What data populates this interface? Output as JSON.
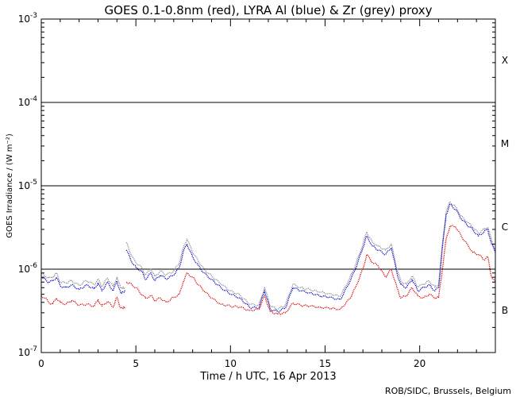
{
  "chart_data": {
    "type": "line",
    "title": "GOES 0.1-0.8nm (red), LYRA Al (blue) & Zr (grey) proxy",
    "xlabel": "Time / h UTC, 16 Apr 2013",
    "ylabel": "GOES Irradiance / (W m⁻²)",
    "xlim": [
      0,
      24
    ],
    "ylim": [
      1e-07,
      0.001
    ],
    "yscale": "log",
    "x_ticks": [
      0,
      5,
      10,
      15,
      20
    ],
    "y_ticks": [
      {
        "exp": -7,
        "label_base": "10",
        "label_exp": "-7"
      },
      {
        "exp": -6,
        "label_base": "10",
        "label_exp": "-6"
      },
      {
        "exp": -5,
        "label_base": "10",
        "label_exp": "-5"
      },
      {
        "exp": -4,
        "label_base": "10",
        "label_exp": "-4"
      },
      {
        "exp": -3,
        "label_base": "10",
        "label_exp": "-3"
      }
    ],
    "flare_class_lines": [
      1e-06,
      1e-05,
      0.0001
    ],
    "flare_classes": [
      {
        "label": "B",
        "y": 3.2e-07
      },
      {
        "label": "C",
        "y": 3.2e-06
      },
      {
        "label": "M",
        "y": 3.2e-05
      },
      {
        "label": "X",
        "y": 0.00032
      }
    ],
    "colors": {
      "goes": "#dd0000",
      "lyra_al": "#0000cc",
      "lyra_zr": "#888888",
      "axis": "#000000"
    },
    "series": [
      {
        "name": "GOES 0.1-0.8nm",
        "color": "#dd0000",
        "segments": [
          [
            [
              0.0,
              4.8e-07
            ],
            [
              0.2,
              4.5e-07
            ],
            [
              0.4,
              4e-07
            ],
            [
              0.6,
              3.8e-07
            ],
            [
              0.8,
              4.5e-07
            ],
            [
              1.0,
              4e-07
            ],
            [
              1.3,
              3.8e-07
            ],
            [
              1.6,
              4.2e-07
            ],
            [
              2.0,
              3.7e-07
            ],
            [
              2.4,
              3.8e-07
            ],
            [
              2.8,
              3.6e-07
            ],
            [
              3.0,
              4.3e-07
            ],
            [
              3.2,
              3.6e-07
            ],
            [
              3.5,
              4.1e-07
            ],
            [
              3.8,
              3.5e-07
            ],
            [
              4.0,
              4.6e-07
            ],
            [
              4.2,
              3.4e-07
            ],
            [
              4.45,
              3.5e-07
            ]
          ],
          [
            [
              4.5,
              7e-07
            ],
            [
              4.8,
              6.5e-07
            ],
            [
              5.0,
              6e-07
            ],
            [
              5.3,
              5e-07
            ],
            [
              5.5,
              4.5e-07
            ],
            [
              5.8,
              4.8e-07
            ],
            [
              6.0,
              4.2e-07
            ],
            [
              6.3,
              4.5e-07
            ],
            [
              6.6,
              4e-07
            ],
            [
              7.0,
              4.6e-07
            ],
            [
              7.3,
              5e-07
            ],
            [
              7.5,
              7e-07
            ],
            [
              7.7,
              9e-07
            ],
            [
              8.0,
              8e-07
            ],
            [
              8.3,
              6.5e-07
            ],
            [
              8.6,
              5.5e-07
            ],
            [
              9.0,
              4.5e-07
            ],
            [
              9.5,
              3.8e-07
            ],
            [
              10.0,
              3.6e-07
            ],
            [
              10.5,
              3.5e-07
            ],
            [
              11.0,
              3.2e-07
            ],
            [
              11.5,
              3.3e-07
            ],
            [
              11.8,
              4.8e-07
            ],
            [
              12.1,
              3.1e-07
            ],
            [
              12.5,
              2.9e-07
            ],
            [
              12.9,
              3e-07
            ],
            [
              13.3,
              3.9e-07
            ],
            [
              13.7,
              3.7e-07
            ],
            [
              14.2,
              3.6e-07
            ],
            [
              14.7,
              3.5e-07
            ],
            [
              15.2,
              3.4e-07
            ],
            [
              15.8,
              3.3e-07
            ],
            [
              16.3,
              4.4e-07
            ],
            [
              16.6,
              6e-07
            ],
            [
              17.0,
              1e-06
            ],
            [
              17.2,
              1.5e-06
            ],
            [
              17.5,
              1.2e-06
            ],
            [
              17.8,
              1.1e-06
            ],
            [
              18.2,
              8e-07
            ],
            [
              18.5,
              1e-06
            ],
            [
              18.8,
              6e-07
            ],
            [
              19.0,
              4.5e-07
            ],
            [
              19.3,
              4.8e-07
            ],
            [
              19.6,
              6e-07
            ],
            [
              19.9,
              4.8e-07
            ],
            [
              20.2,
              4.5e-07
            ],
            [
              20.5,
              5e-07
            ],
            [
              20.8,
              4.5e-07
            ],
            [
              21.0,
              4.6e-07
            ],
            [
              21.2,
              1e-06
            ],
            [
              21.4,
              2.3e-06
            ],
            [
              21.6,
              3.3e-06
            ],
            [
              21.9,
              3.2e-06
            ],
            [
              22.2,
              2.5e-06
            ],
            [
              22.5,
              2e-06
            ],
            [
              22.8,
              1.6e-06
            ],
            [
              23.1,
              1.5e-06
            ],
            [
              23.4,
              1.3e-06
            ],
            [
              23.6,
              1.4e-06
            ],
            [
              23.8,
              8e-07
            ],
            [
              24.0,
              7e-07
            ]
          ]
        ]
      },
      {
        "name": "LYRA Al proxy",
        "color": "#0000cc",
        "segments": [
          [
            [
              0.0,
              8e-07
            ],
            [
              0.2,
              7.5e-07
            ],
            [
              0.4,
              7e-07
            ],
            [
              0.6,
              7.2e-07
            ],
            [
              0.8,
              8e-07
            ],
            [
              1.0,
              6.3e-07
            ],
            [
              1.3,
              6e-07
            ],
            [
              1.6,
              6.5e-07
            ],
            [
              2.0,
              5.7e-07
            ],
            [
              2.4,
              6.5e-07
            ],
            [
              2.8,
              5.8e-07
            ],
            [
              3.0,
              6.8e-07
            ],
            [
              3.2,
              5.5e-07
            ],
            [
              3.5,
              7e-07
            ],
            [
              3.8,
              5.5e-07
            ],
            [
              4.0,
              7.2e-07
            ],
            [
              4.2,
              5.2e-07
            ],
            [
              4.45,
              5.4e-07
            ]
          ],
          [
            [
              4.5,
              1.7e-06
            ],
            [
              4.8,
              1.2e-06
            ],
            [
              5.0,
              1.05e-06
            ],
            [
              5.3,
              9.5e-07
            ],
            [
              5.5,
              7.5e-07
            ],
            [
              5.8,
              9e-07
            ],
            [
              6.0,
              7.3e-07
            ],
            [
              6.3,
              8.5e-07
            ],
            [
              6.6,
              7.6e-07
            ],
            [
              7.0,
              8.5e-07
            ],
            [
              7.3,
              1.05e-06
            ],
            [
              7.5,
              1.6e-06
            ],
            [
              7.7,
              2e-06
            ],
            [
              8.0,
              1.4e-06
            ],
            [
              8.3,
              1.1e-06
            ],
            [
              8.6,
              9e-07
            ],
            [
              9.0,
              7.5e-07
            ],
            [
              9.5,
              6e-07
            ],
            [
              10.0,
              5e-07
            ],
            [
              10.5,
              4.5e-07
            ],
            [
              11.0,
              3.5e-07
            ],
            [
              11.5,
              3.4e-07
            ],
            [
              11.8,
              5.5e-07
            ],
            [
              12.1,
              3.3e-07
            ],
            [
              12.5,
              3.1e-07
            ],
            [
              12.9,
              3.4e-07
            ],
            [
              13.3,
              6e-07
            ],
            [
              13.7,
              5.5e-07
            ],
            [
              14.2,
              5.2e-07
            ],
            [
              14.7,
              4.8e-07
            ],
            [
              15.2,
              4.6e-07
            ],
            [
              15.8,
              4.3e-07
            ],
            [
              16.3,
              7e-07
            ],
            [
              16.6,
              1e-06
            ],
            [
              17.0,
              1.8e-06
            ],
            [
              17.2,
              2.5e-06
            ],
            [
              17.5,
              1.9e-06
            ],
            [
              17.8,
              1.7e-06
            ],
            [
              18.2,
              1.5e-06
            ],
            [
              18.5,
              1.8e-06
            ],
            [
              18.8,
              9e-07
            ],
            [
              19.0,
              6.5e-07
            ],
            [
              19.3,
              6e-07
            ],
            [
              19.6,
              7.5e-07
            ],
            [
              19.9,
              5.5e-07
            ],
            [
              20.2,
              6e-07
            ],
            [
              20.5,
              6.5e-07
            ],
            [
              20.8,
              5.5e-07
            ],
            [
              21.0,
              6e-07
            ],
            [
              21.2,
              1.8e-06
            ],
            [
              21.4,
              4.5e-06
            ],
            [
              21.6,
              6e-06
            ],
            [
              21.9,
              5.2e-06
            ],
            [
              22.2,
              4e-06
            ],
            [
              22.5,
              3.4e-06
            ],
            [
              22.8,
              3e-06
            ],
            [
              23.1,
              2.5e-06
            ],
            [
              23.4,
              2.8e-06
            ],
            [
              23.6,
              3e-06
            ],
            [
              23.8,
              2e-06
            ],
            [
              24.0,
              1.6e-06
            ]
          ]
        ]
      },
      {
        "name": "LYRA Zr proxy",
        "color": "#888888",
        "segments": [
          [
            [
              0.0,
              8.8e-07
            ],
            [
              0.2,
              8.3e-07
            ],
            [
              0.4,
              7.8e-07
            ],
            [
              0.6,
              8e-07
            ],
            [
              0.8,
              9e-07
            ],
            [
              1.0,
              7e-07
            ],
            [
              1.3,
              6.8e-07
            ],
            [
              1.6,
              7.3e-07
            ],
            [
              2.0,
              6.4e-07
            ],
            [
              2.4,
              7.3e-07
            ],
            [
              2.8,
              6.5e-07
            ],
            [
              3.0,
              7.6e-07
            ],
            [
              3.2,
              6.2e-07
            ],
            [
              3.5,
              7.8e-07
            ],
            [
              3.8,
              6.2e-07
            ],
            [
              4.0,
              8e-07
            ],
            [
              4.2,
              5.9e-07
            ],
            [
              4.45,
              6e-07
            ]
          ],
          [
            [
              4.5,
              2.1e-06
            ],
            [
              4.8,
              1.4e-06
            ],
            [
              5.0,
              1.2e-06
            ],
            [
              5.3,
              1.05e-06
            ],
            [
              5.5,
              8.5e-07
            ],
            [
              5.8,
              1e-06
            ],
            [
              6.0,
              8.2e-07
            ],
            [
              6.3,
              9.5e-07
            ],
            [
              6.6,
              8.5e-07
            ],
            [
              7.0,
              9.5e-07
            ],
            [
              7.3,
              1.2e-06
            ],
            [
              7.5,
              1.8e-06
            ],
            [
              7.7,
              2.3e-06
            ],
            [
              8.0,
              1.6e-06
            ],
            [
              8.3,
              1.25e-06
            ],
            [
              8.6,
              1e-06
            ],
            [
              9.0,
              8.3e-07
            ],
            [
              9.5,
              6.6e-07
            ],
            [
              10.0,
              5.5e-07
            ],
            [
              10.5,
              4.9e-07
            ],
            [
              11.0,
              3.8e-07
            ],
            [
              11.5,
              3.7e-07
            ],
            [
              11.8,
              6e-07
            ],
            [
              12.1,
              3.6e-07
            ],
            [
              12.5,
              3.3e-07
            ],
            [
              12.9,
              3.7e-07
            ],
            [
              13.3,
              6.6e-07
            ],
            [
              13.7,
              6e-07
            ],
            [
              14.2,
              5.7e-07
            ],
            [
              14.7,
              5.3e-07
            ],
            [
              15.2,
              5.1e-07
            ],
            [
              15.8,
              4.7e-07
            ],
            [
              16.3,
              7.8e-07
            ],
            [
              16.6,
              1.1e-06
            ],
            [
              17.0,
              2e-06
            ],
            [
              17.2,
              2.8e-06
            ],
            [
              17.5,
              2.1e-06
            ],
            [
              17.8,
              1.9e-06
            ],
            [
              18.2,
              1.7e-06
            ],
            [
              18.5,
              2e-06
            ],
            [
              18.8,
              1e-06
            ],
            [
              19.0,
              7.2e-07
            ],
            [
              19.3,
              6.6e-07
            ],
            [
              19.6,
              8.3e-07
            ],
            [
              19.9,
              6.1e-07
            ],
            [
              20.2,
              6.6e-07
            ],
            [
              20.5,
              7.2e-07
            ],
            [
              20.8,
              6.1e-07
            ],
            [
              21.0,
              6.6e-07
            ],
            [
              21.2,
              2e-06
            ],
            [
              21.4,
              4.9e-06
            ],
            [
              21.6,
              6.4e-06
            ],
            [
              21.9,
              5.6e-06
            ],
            [
              22.2,
              4.3e-06
            ],
            [
              22.5,
              3.7e-06
            ],
            [
              22.8,
              3.2e-06
            ],
            [
              23.1,
              2.7e-06
            ],
            [
              23.4,
              3e-06
            ],
            [
              23.6,
              3.2e-06
            ],
            [
              23.8,
              2.2e-06
            ],
            [
              24.0,
              1.7e-06
            ]
          ]
        ]
      }
    ],
    "credit": "ROB/SIDC, Brussels, Belgium"
  }
}
